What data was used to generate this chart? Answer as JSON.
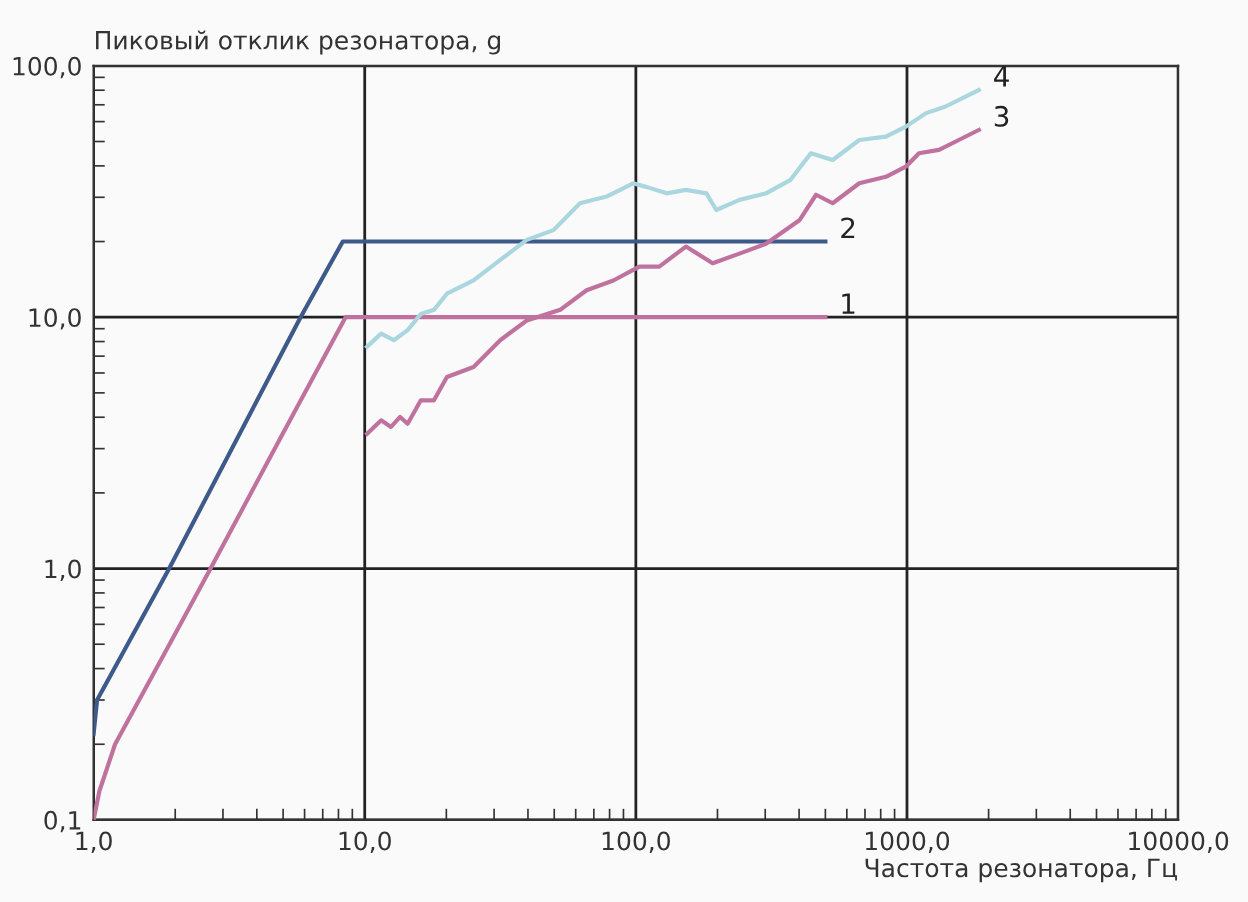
{
  "chart_data": {
    "type": "line",
    "xlabel": "Частота резонатора, Гц",
    "ylabel": "Пиковый отклик резонатора, g",
    "log": "xy",
    "grid": true,
    "legend": false,
    "line_style": "solid",
    "marker": "none",
    "xlim": [
      1,
      10000
    ],
    "ylim": [
      0.1,
      100
    ],
    "xticks": [
      {
        "value": 1,
        "label": "1,0"
      },
      {
        "value": 10,
        "label": "10,0"
      },
      {
        "value": 100,
        "label": "100,0"
      },
      {
        "value": 1000,
        "label": "1000,0"
      },
      {
        "value": 10000,
        "label": "10000,0"
      }
    ],
    "yticks": [
      {
        "value": 0.1,
        "label": "0,1"
      },
      {
        "value": 1,
        "label": "1,0"
      },
      {
        "value": 10,
        "label": "10,0"
      },
      {
        "value": 100,
        "label": "100,0"
      }
    ],
    "series": [
      {
        "name": "1",
        "color": "#c0729f",
        "x": [
          1,
          1.05,
          1.2,
          2,
          2.7,
          5,
          8.5,
          500
        ],
        "values": [
          0.1,
          0.13,
          0.2,
          0.55,
          1.0,
          3.46,
          10,
          10
        ]
      },
      {
        "name": "2",
        "color": "#3d5a8a",
        "x": [
          1,
          1.03,
          1.9,
          5.8,
          8.3,
          500
        ],
        "values": [
          0.22,
          0.3,
          1.0,
          10,
          20,
          20
        ]
      },
      {
        "name": "3",
        "color": "#c0729f",
        "x": [
          10.2,
          11.5,
          12.5,
          13.5,
          14.4,
          16.1,
          18.0,
          20.1,
          25.2,
          31.6,
          39.6,
          52.6,
          65.8,
          82.6,
          103,
          122,
          153,
          192,
          241,
          302,
          401,
          462,
          532,
          667,
          836,
          990,
          1107,
          1312,
          1553,
          1841
        ],
        "values": [
          3.44,
          3.89,
          3.66,
          4.01,
          3.77,
          4.67,
          4.67,
          5.78,
          6.34,
          8.1,
          9.7,
          10.7,
          12.8,
          14.0,
          15.9,
          15.9,
          19.1,
          16.4,
          17.9,
          19.6,
          24.3,
          30.7,
          28.4,
          34.1,
          36.2,
          39.7,
          44.9,
          46.3,
          50.7,
          55.6
        ]
      },
      {
        "name": "4",
        "color": "#a9d6df",
        "x": [
          10.2,
          11.5,
          12.8,
          14.4,
          16.1,
          18.0,
          20.1,
          25.2,
          31.6,
          39.6,
          49.7,
          62.2,
          78.0,
          97.7,
          109,
          130,
          153,
          182,
          198,
          241,
          302,
          372,
          442,
          532,
          667,
          836,
          990,
          1172,
          1387,
          1644,
          1841
        ],
        "values": [
          7.62,
          8.61,
          8.1,
          8.88,
          10.3,
          10.7,
          12.4,
          14.0,
          16.9,
          20.3,
          22.2,
          28.4,
          30.2,
          34.1,
          33.0,
          31.1,
          32.1,
          31.1,
          26.7,
          29.3,
          31.1,
          35.2,
          44.9,
          42.2,
          50.7,
          52.3,
          57.3,
          64.7,
          68.9,
          75.5,
          80.2
        ]
      }
    ]
  }
}
